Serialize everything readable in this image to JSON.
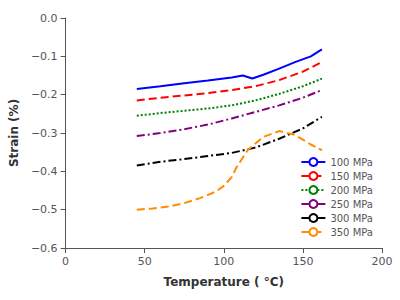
{
  "chart_data": {
    "type": "line",
    "xlabel": "Temperature ( °C)",
    "ylabel": "Strain (%)",
    "xlim": [
      0,
      200
    ],
    "ylim": [
      -0.6,
      0.0
    ],
    "xticks": [
      0,
      50,
      100,
      150,
      200
    ],
    "yticks": [
      {
        "value": 0,
        "label": "0.0"
      },
      {
        "value": -0.1,
        "label": "−0.1"
      },
      {
        "value": -0.2,
        "label": "−0.2"
      },
      {
        "value": -0.3,
        "label": "−0.3"
      },
      {
        "value": -0.4,
        "label": "−0.4"
      },
      {
        "value": -0.5,
        "label": "−0.5"
      },
      {
        "value": -0.6,
        "label": "−0.6"
      }
    ],
    "grid": false,
    "legend": "lower right",
    "series": [
      {
        "name": "100 MPa",
        "color": "#0000FF",
        "line_style": "solid",
        "x": [
          45,
          60,
          75,
          90,
          105,
          112,
          118,
          125,
          135,
          145,
          155,
          162
        ],
        "values": [
          -0.185,
          -0.178,
          -0.17,
          -0.163,
          -0.155,
          -0.15,
          -0.158,
          -0.148,
          -0.132,
          -0.115,
          -0.1,
          -0.082
        ]
      },
      {
        "name": "150 MPa",
        "color": "#FF0000",
        "line_style": "dashed",
        "x": [
          45,
          60,
          75,
          90,
          105,
          120,
          135,
          150,
          162
        ],
        "values": [
          -0.215,
          -0.208,
          -0.202,
          -0.196,
          -0.188,
          -0.178,
          -0.162,
          -0.14,
          -0.115
        ]
      },
      {
        "name": "200 MPa",
        "color": "#008000",
        "line_style": "dotted",
        "x": [
          45,
          60,
          75,
          90,
          105,
          120,
          135,
          150,
          162
        ],
        "values": [
          -0.255,
          -0.248,
          -0.242,
          -0.236,
          -0.228,
          -0.215,
          -0.198,
          -0.178,
          -0.158
        ]
      },
      {
        "name": "250 MPa",
        "color": "#800080",
        "line_style": "dashdot",
        "x": [
          45,
          60,
          75,
          90,
          105,
          120,
          135,
          150,
          162
        ],
        "values": [
          -0.308,
          -0.3,
          -0.29,
          -0.278,
          -0.262,
          -0.245,
          -0.228,
          -0.208,
          -0.188
        ]
      },
      {
        "name": "300 MPa",
        "color": "#000000",
        "line_style": "dashdot",
        "x": [
          45,
          60,
          75,
          90,
          105,
          120,
          135,
          150,
          162
        ],
        "values": [
          -0.385,
          -0.375,
          -0.368,
          -0.36,
          -0.352,
          -0.338,
          -0.315,
          -0.288,
          -0.258
        ]
      },
      {
        "name": "350 MPa",
        "color": "#FF8C00",
        "line_style": "dashed",
        "x": [
          45,
          55,
          65,
          75,
          85,
          95,
          100,
          105,
          108,
          115,
          125,
          135,
          145,
          155,
          162
        ],
        "values": [
          -0.5,
          -0.497,
          -0.492,
          -0.483,
          -0.47,
          -0.453,
          -0.438,
          -0.415,
          -0.39,
          -0.345,
          -0.31,
          -0.295,
          -0.305,
          -0.33,
          -0.345
        ]
      }
    ]
  }
}
